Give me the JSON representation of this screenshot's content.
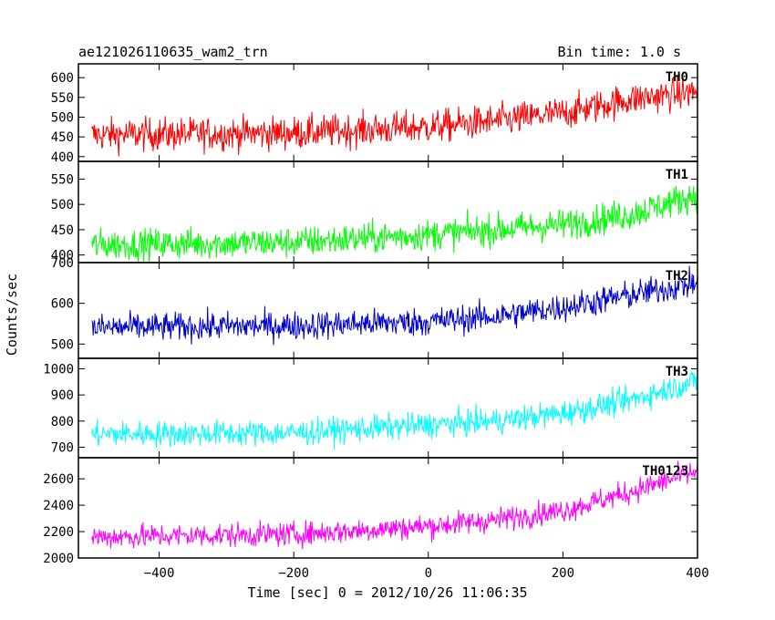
{
  "chart_data": {
    "type": "line",
    "title": "ae121026110635_wam2_trn",
    "bin_time_label": "Bin time: 1.0 s",
    "xlabel": "Time [sec] 0 = 2012/10/26 11:06:35",
    "ylabel": "Counts/sec",
    "xlim": [
      -520,
      400
    ],
    "x_ticks": [
      -400,
      -200,
      0,
      200,
      400
    ],
    "x_tick_labels": [
      "−400",
      "−200",
      "0",
      "200",
      "400"
    ],
    "x_range": [
      -500,
      400
    ],
    "grid": false,
    "panels": [
      {
        "name": "TH0",
        "color": "#ff0000",
        "ylim": [
          388,
          635
        ],
        "y_ticks": [
          400,
          450,
          500,
          550,
          600
        ],
        "y_tick_labels": [
          "400",
          "450",
          "500",
          "550",
          "600"
        ],
        "trend": [
          [
            -500,
            455
          ],
          [
            -200,
            460
          ],
          [
            0,
            475
          ],
          [
            100,
            490
          ],
          [
            200,
            510
          ],
          [
            300,
            545
          ],
          [
            400,
            565
          ]
        ],
        "noise": 30
      },
      {
        "name": "TH1",
        "color": "#00ff00",
        "ylim": [
          385,
          585
        ],
        "y_ticks": [
          400,
          450,
          500,
          550
        ],
        "y_tick_labels": [
          "400",
          "450",
          "500",
          "550"
        ],
        "trend": [
          [
            -500,
            420
          ],
          [
            -200,
            425
          ],
          [
            0,
            440
          ],
          [
            100,
            450
          ],
          [
            200,
            460
          ],
          [
            300,
            480
          ],
          [
            400,
            520
          ]
        ],
        "noise": 22
      },
      {
        "name": "TH2",
        "color": "#0000cc",
        "ylim": [
          465,
          700
        ],
        "y_ticks": [
          500,
          600,
          700
        ],
        "y_tick_labels": [
          "500",
          "600",
          "700"
        ],
        "trend": [
          [
            -500,
            540
          ],
          [
            -200,
            545
          ],
          [
            0,
            555
          ],
          [
            100,
            568
          ],
          [
            200,
            590
          ],
          [
            300,
            620
          ],
          [
            400,
            650
          ]
        ],
        "noise": 25
      },
      {
        "name": "TH3",
        "color": "#00ffff",
        "ylim": [
          660,
          1040
        ],
        "y_ticks": [
          700,
          800,
          900,
          1000
        ],
        "y_tick_labels": [
          "700",
          "800",
          "900",
          "1000"
        ],
        "trend": [
          [
            -500,
            750
          ],
          [
            -200,
            755
          ],
          [
            0,
            785
          ],
          [
            100,
            800
          ],
          [
            200,
            830
          ],
          [
            300,
            880
          ],
          [
            400,
            955
          ]
        ],
        "noise": 35
      },
      {
        "name": "TH0123",
        "color": "#ff00ff",
        "ylim": [
          2000,
          2760
        ],
        "y_ticks": [
          2000,
          2200,
          2400,
          2600
        ],
        "y_tick_labels": [
          "2000",
          "2200",
          "2400",
          "2600"
        ],
        "trend": [
          [
            -500,
            2160
          ],
          [
            -200,
            2180
          ],
          [
            0,
            2240
          ],
          [
            100,
            2290
          ],
          [
            200,
            2360
          ],
          [
            300,
            2500
          ],
          [
            400,
            2660
          ]
        ],
        "noise": 65
      }
    ]
  }
}
